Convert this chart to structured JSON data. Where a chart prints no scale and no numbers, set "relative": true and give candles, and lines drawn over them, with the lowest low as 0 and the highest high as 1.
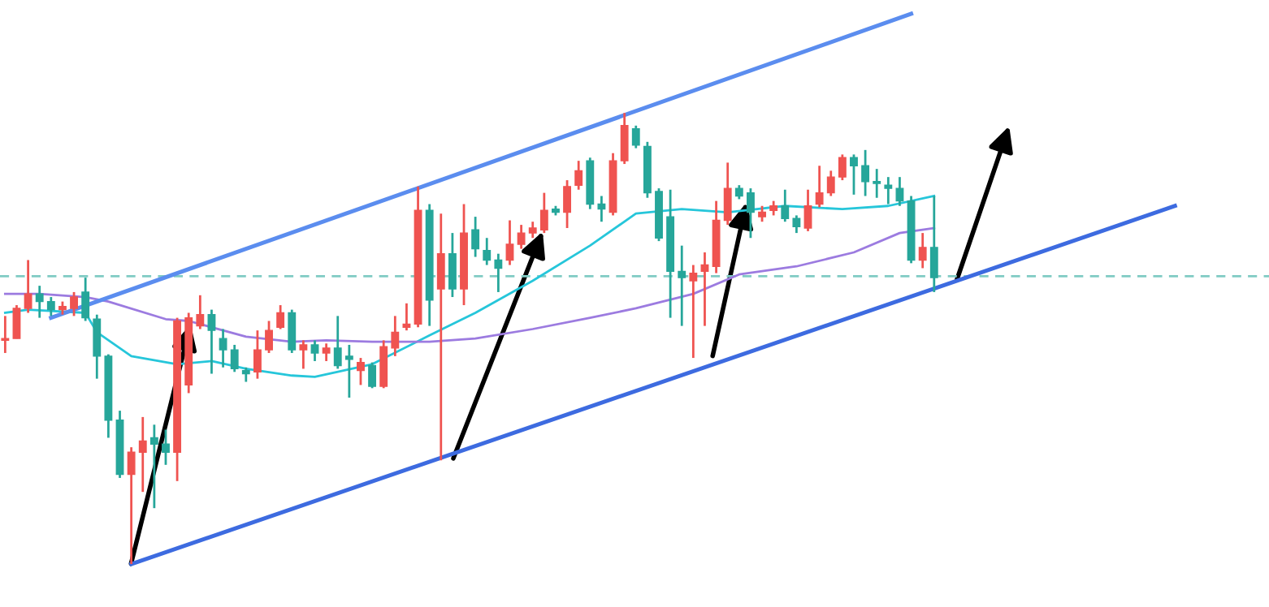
{
  "chart_data": {
    "type": "candlestick",
    "relative": true,
    "categories": [
      null,
      null,
      null,
      null,
      null,
      null,
      null,
      null,
      null,
      null,
      null,
      null,
      null,
      null,
      null,
      null,
      null,
      null,
      null,
      null,
      null,
      null,
      null,
      null,
      null,
      null,
      null,
      null,
      null,
      null,
      null,
      null,
      null,
      null,
      null,
      null,
      null,
      null,
      null,
      null,
      null,
      null,
      null,
      null,
      null,
      null,
      null,
      null,
      null,
      null,
      null,
      null,
      null,
      null,
      null,
      null,
      null,
      null,
      null,
      null,
      null,
      null,
      null,
      null,
      null,
      null,
      null,
      null,
      null,
      null,
      null,
      null,
      null,
      null,
      null,
      null,
      null,
      null,
      null,
      null,
      null,
      null,
      null,
      null,
      null,
      null,
      null,
      null,
      null,
      null,
      null,
      null,
      null,
      null,
      null,
      null,
      null,
      null,
      null,
      null,
      null,
      null,
      null,
      null,
      null,
      null,
      null,
      null,
      null,
      null
    ],
    "ohlc": [
      [
        0.496,
        0.55,
        0.468,
        0.5
      ],
      [
        0.5,
        0.574,
        0.5,
        0.567
      ],
      [
        0.567,
        0.674,
        0.557,
        0.599
      ],
      [
        0.599,
        0.617,
        0.546,
        0.582
      ],
      [
        0.582,
        0.592,
        0.55,
        0.564
      ],
      [
        0.564,
        0.582,
        0.553,
        0.571
      ],
      [
        0.567,
        0.603,
        0.55,
        0.592
      ],
      [
        0.603,
        0.635,
        0.539,
        0.546
      ],
      [
        0.543,
        0.553,
        0.411,
        0.461
      ],
      [
        0.461,
        0.465,
        0.28,
        0.319
      ],
      [
        0.319,
        0.34,
        0.191,
        0.199
      ],
      [
        0.199,
        0.259,
        0,
        0.248
      ],
      [
        0.248,
        0.326,
        0.16,
        0.273
      ],
      [
        0.28,
        0.309,
        0.124,
        0.266
      ],
      [
        0.266,
        0.298,
        0.22,
        0.248
      ],
      [
        0.248,
        0.546,
        0.184,
        0.539
      ],
      [
        0.397,
        0.557,
        0.379,
        0.546
      ],
      [
        0.528,
        0.596,
        0.521,
        0.553
      ],
      [
        0.553,
        0.564,
        0.422,
        0.518
      ],
      [
        0.5,
        0.521,
        0.436,
        0.475
      ],
      [
        0.475,
        0.486,
        0.426,
        0.433
      ],
      [
        0.429,
        0.436,
        0.404,
        0.422
      ],
      [
        0.426,
        0.518,
        0.411,
        0.475
      ],
      [
        0.475,
        0.539,
        0.468,
        0.518
      ],
      [
        0.525,
        0.574,
        0.521,
        0.557
      ],
      [
        0.557,
        0.564,
        0.468,
        0.475
      ],
      [
        0.475,
        0.496,
        0.433,
        0.486
      ],
      [
        0.486,
        0.496,
        0.45,
        0.468
      ],
      [
        0.468,
        0.489,
        0.45,
        0.479
      ],
      [
        0.479,
        0.55,
        0.433,
        0.44
      ],
      [
        0.461,
        0.486,
        0.369,
        0.454
      ],
      [
        0.429,
        0.457,
        0.397,
        0.447
      ],
      [
        0.44,
        0.447,
        0.39,
        0.394
      ],
      [
        0.394,
        0.496,
        0.39,
        0.482
      ],
      [
        0.479,
        0.55,
        0.461,
        0.514
      ],
      [
        0.525,
        0.578,
        0.518,
        0.532
      ],
      [
        0.532,
        0.837,
        0.525,
        0.784
      ],
      [
        0.784,
        0.798,
        0.528,
        0.585
      ],
      [
        0.61,
        0.777,
        0.23,
        0.688
      ],
      [
        0.688,
        0.734,
        0.592,
        0.61
      ],
      [
        0.61,
        0.798,
        0.574,
        0.734
      ],
      [
        0.741,
        0.77,
        0.681,
        0.699
      ],
      [
        0.695,
        0.723,
        0.663,
        0.674
      ],
      [
        0.674,
        0.688,
        0.603,
        0.656
      ],
      [
        0.674,
        0.762,
        0.663,
        0.709
      ],
      [
        0.709,
        0.752,
        0.699,
        0.734
      ],
      [
        0.734,
        0.759,
        0.723,
        0.745
      ],
      [
        0.741,
        0.823,
        0.734,
        0.784
      ],
      [
        0.787,
        0.794,
        0.773,
        0.78
      ],
      [
        0.78,
        0.851,
        0.745,
        0.837
      ],
      [
        0.84,
        0.894,
        0.83,
        0.872
      ],
      [
        0.894,
        0.901,
        0.787,
        0.798
      ],
      [
        0.798,
        0.816,
        0.759,
        0.787
      ],
      [
        0.78,
        0.911,
        0.773,
        0.894
      ],
      [
        0.894,
        1.0,
        0.887,
        0.972
      ],
      [
        0.965,
        0.972,
        0.922,
        0.929
      ],
      [
        0.926,
        0.936,
        0.812,
        0.823
      ],
      [
        0.826,
        0.833,
        0.716,
        0.723
      ],
      [
        0.77,
        0.83,
        0.546,
        0.649
      ],
      [
        0.649,
        0.706,
        0.528,
        0.635
      ],
      [
        0.628,
        0.663,
        0.457,
        0.645
      ],
      [
        0.649,
        0.691,
        0.528,
        0.663
      ],
      [
        0.66,
        0.805,
        0.645,
        0.762
      ],
      [
        0.762,
        0.89,
        0.752,
        0.833
      ],
      [
        0.833,
        0.84,
        0.809,
        0.816
      ],
      [
        0.823,
        0.833,
        0.723,
        0.78
      ],
      [
        0.77,
        0.794,
        0.759,
        0.78
      ],
      [
        0.784,
        0.805,
        0.773,
        0.794
      ],
      [
        0.794,
        0.83,
        0.759,
        0.766
      ],
      [
        0.766,
        0.773,
        0.734,
        0.748
      ],
      [
        0.745,
        0.83,
        0.738,
        0.794
      ],
      [
        0.798,
        0.883,
        0.791,
        0.823
      ],
      [
        0.823,
        0.872,
        0.816,
        0.858
      ],
      [
        0.858,
        0.908,
        0.851,
        0.901
      ],
      [
        0.901,
        0.908,
        0.819,
        0.883
      ],
      [
        0.883,
        0.918,
        0.816,
        0.848
      ],
      [
        0.848,
        0.876,
        0.812,
        0.844
      ],
      [
        0.84,
        0.858,
        0.798,
        0.833
      ],
      [
        0.833,
        0.858,
        0.794,
        0.805
      ],
      [
        0.805,
        0.816,
        0.667,
        0.674
      ],
      [
        0.674,
        0.734,
        0.656,
        0.702
      ],
      [
        0.702,
        0.816,
        0.603,
        0.635
      ],
      null,
      null,
      null,
      null,
      null,
      null,
      null,
      null,
      null,
      null,
      null,
      null,
      null,
      null,
      null,
      null,
      null,
      null,
      null,
      null,
      null,
      null,
      null,
      null,
      null,
      null,
      null,
      null
    ],
    "colors": [
      "#ef5350",
      "#ef5350",
      "#ef5350",
      "#26a69a",
      "#26a69a",
      "#ef5350",
      "#ef5350",
      "#26a69a",
      "#26a69a",
      "#26a69a",
      "#26a69a",
      "#ef5350",
      "#ef5350",
      "#26a69a",
      "#26a69a",
      "#ef5350",
      "#ef5350",
      "#ef5350",
      "#26a69a",
      "#26a69a",
      "#26a69a",
      "#26a69a",
      "#ef5350",
      "#ef5350",
      "#ef5350",
      "#26a69a",
      "#ef5350",
      "#26a69a",
      "#ef5350",
      "#26a69a",
      "#26a69a",
      "#ef5350",
      "#26a69a",
      "#ef5350",
      "#ef5350",
      "#ef5350",
      "#ef5350",
      "#26a69a",
      "#ef5350",
      "#26a69a",
      "#ef5350",
      "#26a69a",
      "#26a69a",
      "#26a69a",
      "#ef5350",
      "#ef5350",
      "#ef5350",
      "#ef5350",
      "#26a69a",
      "#ef5350",
      "#ef5350",
      "#26a69a",
      "#26a69a",
      "#ef5350",
      "#ef5350",
      "#26a69a",
      "#26a69a",
      "#26a69a",
      "#26a69a",
      "#26a69a",
      "#ef5350",
      "#ef5350",
      "#ef5350",
      "#ef5350",
      "#26a69a",
      "#26a69a",
      "#ef5350",
      "#ef5350",
      "#26a69a",
      "#26a69a",
      "#ef5350",
      "#ef5350",
      "#ef5350",
      "#ef5350",
      "#26a69a",
      "#26a69a",
      "#26a69a",
      "#26a69a",
      "#26a69a",
      "#26a69a",
      "#ef5350",
      "#26a69a",
      null,
      null,
      null,
      null,
      null,
      null,
      null,
      null,
      null,
      null,
      null,
      null,
      null,
      null,
      null,
      null,
      null,
      null,
      null,
      null,
      null,
      null,
      null,
      null,
      null,
      null,
      null,
      null
    ],
    "series": [
      {
        "type": "line",
        "color": "#26c6da",
        "values": [
          0.557,
          null,
          0.564,
          null,
          null,
          null,
          null,
          0.557,
          0.514,
          null,
          null,
          0.461,
          null,
          null,
          null,
          0.443,
          null,
          null,
          0.45,
          null,
          null,
          0.433,
          null,
          null,
          null,
          0.418,
          null,
          0.415,
          null,
          null,
          null,
          null,
          0.443,
          null,
          null,
          null,
          null,
          0.507,
          null,
          null,
          null,
          0.557,
          null,
          null,
          null,
          null,
          0.628,
          null,
          null,
          null,
          null,
          0.706,
          null,
          null,
          null,
          0.777,
          null,
          null,
          null,
          0.787,
          null,
          null,
          null,
          0.78,
          null,
          null,
          null,
          null,
          0.794,
          null,
          null,
          null,
          null,
          0.787,
          null,
          null,
          null,
          0.794,
          null,
          null,
          null,
          0.816,
          null,
          null,
          null,
          null,
          null,
          null,
          null,
          null,
          null,
          null,
          null,
          null,
          null,
          null,
          null,
          null,
          null,
          null,
          null,
          null,
          null,
          null,
          null,
          null,
          null,
          null,
          null,
          null
        ]
      },
      {
        "type": "line",
        "color": "#9c7be0",
        "values": [
          0.599,
          null,
          null,
          0.599,
          null,
          null,
          null,
          0.592,
          null,
          0.582,
          null,
          null,
          null,
          null,
          0.543,
          null,
          0.539,
          null,
          null,
          null,
          null,
          0.504,
          null,
          null,
          null,
          0.493,
          null,
          null,
          0.496,
          null,
          null,
          null,
          0.493,
          null,
          null,
          null,
          null,
          0.493,
          null,
          null,
          null,
          0.5,
          null,
          null,
          null,
          null,
          0.521,
          null,
          null,
          null,
          null,
          0.546,
          null,
          null,
          null,
          0.567,
          null,
          null,
          null,
          null,
          0.599,
          null,
          null,
          null,
          0.642,
          null,
          null,
          null,
          null,
          0.66,
          null,
          null,
          null,
          null,
          0.691,
          null,
          null,
          null,
          0.734,
          null,
          null,
          0.745,
          null,
          null,
          null,
          null,
          null,
          null,
          null,
          null,
          null,
          null,
          null,
          null,
          null,
          null,
          null,
          null,
          null,
          null,
          null,
          null,
          null,
          null,
          null,
          null,
          null,
          null,
          null,
          null
        ]
      },
      {
        "type": "line",
        "color": "#5b8def",
        "values": [
          null,
          null,
          null,
          null,
          0.546,
          null,
          null,
          null,
          null,
          null,
          null,
          null,
          null,
          null,
          null,
          null,
          null,
          null,
          null,
          null,
          null,
          null,
          null,
          null,
          null,
          null,
          null,
          null,
          null,
          null,
          null,
          null,
          null,
          null,
          null,
          null,
          null,
          null,
          null,
          null,
          null,
          null,
          null,
          null,
          null,
          null,
          null,
          null,
          null,
          null,
          null,
          null,
          null,
          null,
          null,
          null,
          null,
          null,
          null,
          null,
          null,
          null,
          null,
          null,
          null,
          null,
          null,
          null,
          null,
          null,
          null,
          null,
          null,
          null,
          null,
          null,
          null,
          null,
          null,
          1.22,
          null,
          null,
          null,
          null,
          null,
          null,
          null,
          null,
          null,
          null,
          null,
          null,
          null,
          null,
          null,
          null,
          null,
          null,
          null,
          null,
          null,
          null,
          null,
          null,
          null,
          null,
          null,
          null,
          null,
          null
        ]
      },
      {
        "type": "line",
        "color": "#3d6be0",
        "values": [
          null,
          null,
          null,
          null,
          null,
          null,
          null,
          null,
          null,
          null,
          null,
          0,
          null,
          null,
          null,
          null,
          null,
          null,
          null,
          null,
          null,
          null,
          null,
          null,
          null,
          null,
          null,
          null,
          null,
          null,
          null,
          null,
          null,
          null,
          null,
          null,
          null,
          null,
          null,
          null,
          null,
          null,
          null,
          null,
          null,
          null,
          null,
          null,
          null,
          null,
          null,
          null,
          null,
          null,
          null,
          null,
          null,
          null,
          null,
          null,
          null,
          null,
          null,
          null,
          null,
          null,
          null,
          null,
          null,
          null,
          null,
          null,
          null,
          null,
          null,
          null,
          null,
          null,
          null,
          null,
          null,
          null,
          null,
          null,
          null,
          null,
          null,
          null,
          null,
          null,
          null,
          null,
          null,
          null,
          null,
          null,
          null,
          null,
          null,
          null,
          null,
          null,
          0.794,
          null,
          null,
          null,
          null,
          null,
          null,
          null
        ]
      }
    ],
    "ref_lines": [
      {
        "axis": "y",
        "value": 0.638,
        "color": "#80cbc4",
        "line_style": "dashed"
      }
    ]
  }
}
